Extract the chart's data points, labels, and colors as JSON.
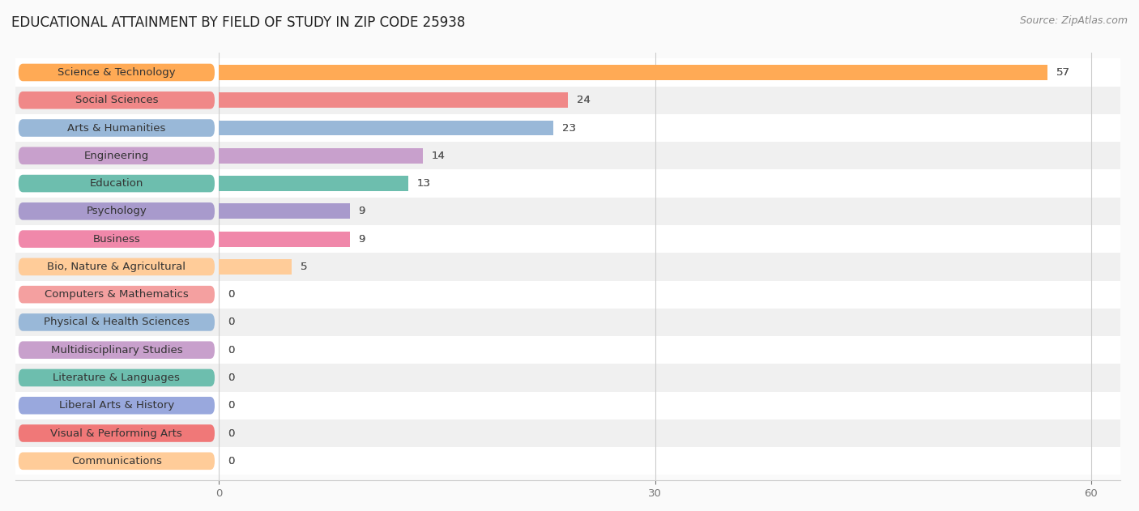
{
  "title": "EDUCATIONAL ATTAINMENT BY FIELD OF STUDY IN ZIP CODE 25938",
  "source": "Source: ZipAtlas.com",
  "categories": [
    "Science & Technology",
    "Social Sciences",
    "Arts & Humanities",
    "Engineering",
    "Education",
    "Psychology",
    "Business",
    "Bio, Nature & Agricultural",
    "Computers & Mathematics",
    "Physical & Health Sciences",
    "Multidisciplinary Studies",
    "Literature & Languages",
    "Liberal Arts & History",
    "Visual & Performing Arts",
    "Communications"
  ],
  "values": [
    57,
    24,
    23,
    14,
    13,
    9,
    9,
    5,
    0,
    0,
    0,
    0,
    0,
    0,
    0
  ],
  "bar_colors": [
    "#FFAA55",
    "#F08888",
    "#99B8D8",
    "#C8A0CC",
    "#6DBEAE",
    "#A89ACC",
    "#F088AA",
    "#FFCC99",
    "#F4A0A0",
    "#99B8D8",
    "#C8A0CC",
    "#6DBEAE",
    "#99A8DD",
    "#F07878",
    "#FFCC99"
  ],
  "pill_colors": [
    "#FFAA55",
    "#F08888",
    "#99B8D8",
    "#C8A0CC",
    "#6DBEAE",
    "#A89ACC",
    "#F088AA",
    "#FFCC99",
    "#F4A0A0",
    "#99B8D8",
    "#C8A0CC",
    "#6DBEAE",
    "#99A8DD",
    "#F07878",
    "#FFCC99"
  ],
  "xlim": [
    0,
    60
  ],
  "xticks": [
    0,
    30,
    60
  ],
  "bar_height": 0.55,
  "background_color": "#fafafa",
  "row_colors": [
    "#ffffff",
    "#f0f0f0"
  ],
  "title_fontsize": 12,
  "label_fontsize": 9.5,
  "value_fontsize": 9.5,
  "source_fontsize": 9
}
